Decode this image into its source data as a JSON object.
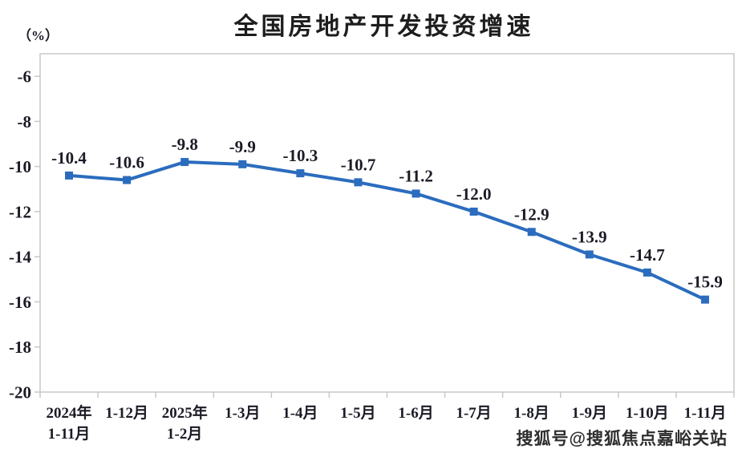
{
  "title": "全国房地产开发投资增速",
  "watermark": "搜狐号@搜狐焦点嘉峪关站",
  "colors": {
    "line": "#2b6cbe",
    "marker": "#2b6cbe",
    "axis": "#c8c8c8",
    "text": "#1b1b26"
  },
  "chart_data": {
    "type": "line",
    "title": "全国房地产开发投资增速",
    "ylabel": "（%）",
    "categories": [
      "2024年\n1-11月",
      "1-12月",
      "2025年\n1-2月",
      "1-3月",
      "1-4月",
      "1-5月",
      "1-6月",
      "1-7月",
      "1-8月",
      "1-9月",
      "1-10月",
      "1-11月"
    ],
    "values": [
      -10.4,
      -10.6,
      -9.8,
      -9.9,
      -10.3,
      -10.7,
      -11.2,
      -12.0,
      -12.9,
      -13.9,
      -14.7,
      -15.9
    ],
    "data_labels": [
      "-10.4",
      "-10.6",
      "-9.8",
      "-9.9",
      "-10.3",
      "-10.7",
      "-11.2",
      "-12.0",
      "-12.9",
      "-13.9",
      "-14.7",
      "-15.9"
    ],
    "yticks": [
      -6,
      -8,
      -10,
      -12,
      -14,
      -16,
      -18,
      -20
    ],
    "ylim": [
      -20,
      -5
    ],
    "grid": false,
    "legend": "none",
    "marker": "square"
  }
}
